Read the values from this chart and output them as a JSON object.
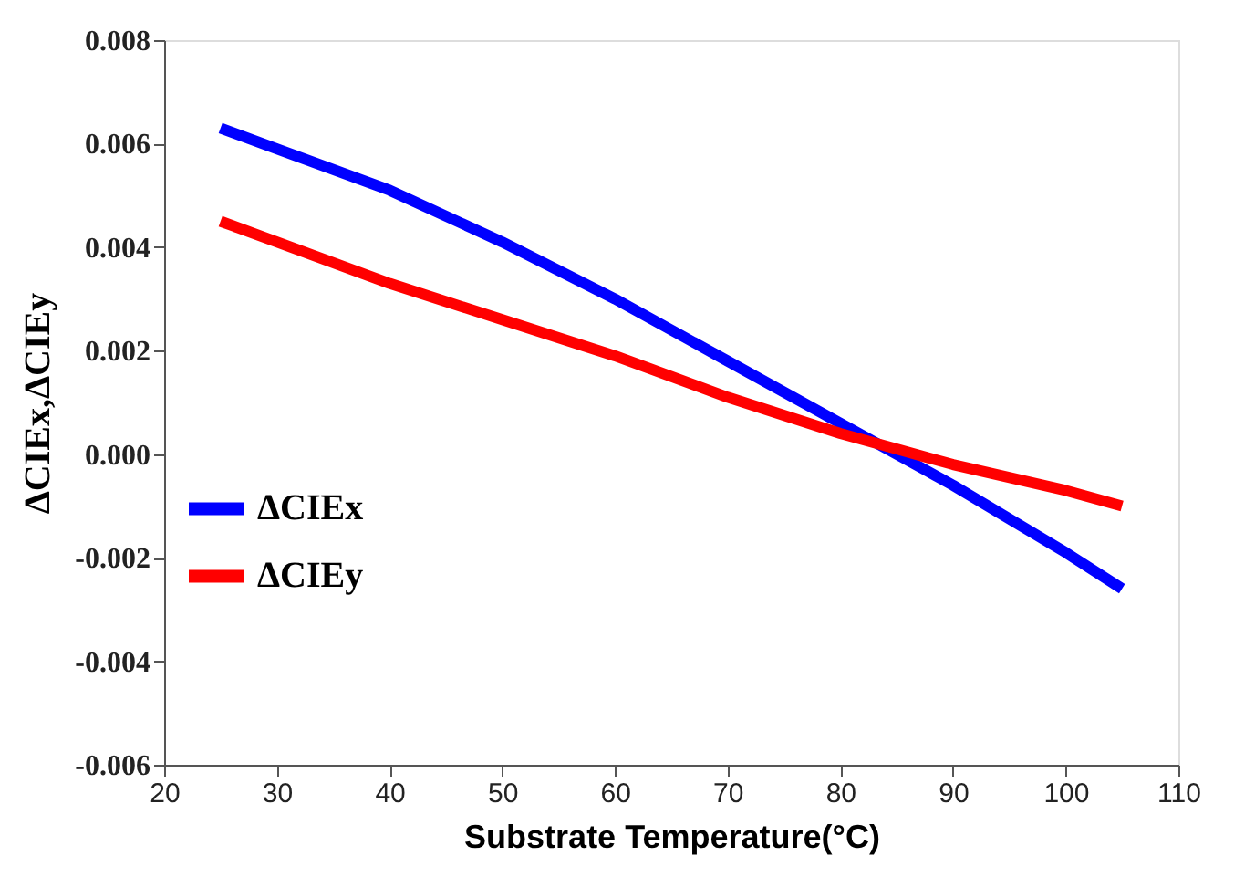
{
  "chart_data": {
    "type": "line",
    "xlabel": "Substrate Temperature(°C)",
    "ylabel": "ΔCIEx,ΔCIEy",
    "x": [
      25,
      30,
      40,
      50,
      60,
      70,
      80,
      85,
      90,
      100,
      105
    ],
    "series": [
      {
        "name": "ΔCIEx",
        "color": "#0000ff",
        "values": [
          0.0063,
          0.0059,
          0.0051,
          0.0041,
          0.003,
          0.0018,
          0.0006,
          0.0,
          -0.0006,
          -0.0019,
          -0.0026
        ]
      },
      {
        "name": "ΔCIEy",
        "color": "#ff0000",
        "values": [
          0.0045,
          0.0041,
          0.0033,
          0.0026,
          0.0019,
          0.0011,
          0.0004,
          0.0001,
          -0.0002,
          -0.0007,
          -0.001
        ]
      }
    ],
    "xlim": [
      20,
      110
    ],
    "xticks": [
      20,
      30,
      40,
      50,
      60,
      70,
      80,
      90,
      100,
      110
    ],
    "ylim": [
      -0.006,
      0.008
    ],
    "yticks": [
      {
        "value": -0.006,
        "label": "-0.006"
      },
      {
        "value": -0.004,
        "label": "-0.004"
      },
      {
        "value": -0.002,
        "label": "-0.002"
      },
      {
        "value": 0,
        "label": "0.000"
      },
      {
        "value": 0.002,
        "label": "0.002"
      },
      {
        "value": 0.004,
        "label": "0.004"
      },
      {
        "value": 0.006,
        "label": "0.006"
      },
      {
        "value": 0.008,
        "label": "0.008"
      }
    ],
    "grid": false,
    "legend": "left",
    "marker": "none",
    "line_style": "solid"
  }
}
